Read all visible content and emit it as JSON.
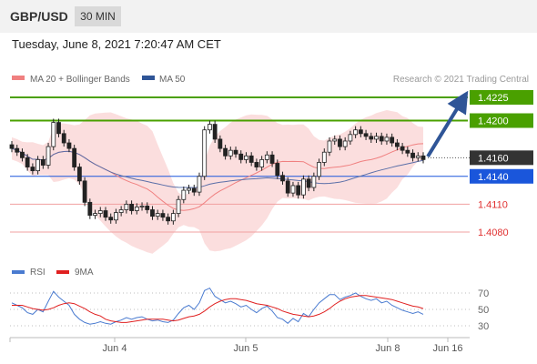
{
  "header": {
    "pair": "GBP/USD",
    "timeframe": "30 MIN"
  },
  "date_label": "Tuesday, June 8, 2021 7:20:47 AM CET",
  "chart_data": [
    {
      "type": "candlestick",
      "title": "GBP/USD 30 MIN",
      "legend": [
        {
          "label": "MA 20 + Bollinger Bands",
          "color": "#f08080"
        },
        {
          "label": "MA 50",
          "color": "#2f5597"
        }
      ],
      "source": "Research © 2021 Trading Central",
      "y_axis": {
        "range": [
          1.406,
          1.4235
        ],
        "tick_labels": [
          "1.4225",
          "1.4200",
          "1.4160",
          "1.4140",
          "1.4110",
          "1.4080"
        ]
      },
      "levels": [
        {
          "value": 1.4225,
          "label": "1.4225",
          "type": "target",
          "color": "#4aa000"
        },
        {
          "value": 1.42,
          "label": "1.4200",
          "type": "resistance",
          "color": "#4aa000"
        },
        {
          "value": 1.416,
          "label": "1.4160",
          "type": "last-price",
          "color": "#333333"
        },
        {
          "value": 1.414,
          "label": "1.4140",
          "type": "pivot",
          "color": "#1a56db"
        },
        {
          "value": 1.411,
          "label": "1.4110",
          "type": "support",
          "color": "#e03030"
        },
        {
          "value": 1.408,
          "label": "1.4080",
          "type": "support",
          "color": "#e03030"
        }
      ],
      "x_axis": {
        "tick_labels": [
          "Jun 4",
          "Jun 5",
          "Jun 8",
          "Jun 16"
        ]
      },
      "price_series": [
        1.417,
        1.4166,
        1.416,
        1.415,
        1.4146,
        1.4158,
        1.4152,
        1.4172,
        1.4198,
        1.4186,
        1.4176,
        1.417,
        1.415,
        1.4135,
        1.4112,
        1.4098,
        1.41,
        1.4103,
        1.4096,
        1.4093,
        1.4101,
        1.4104,
        1.411,
        1.4103,
        1.4107,
        1.4108,
        1.4104,
        1.4097,
        1.41,
        1.4096,
        1.4092,
        1.41,
        1.4115,
        1.4125,
        1.4127,
        1.4123,
        1.414,
        1.419,
        1.4196,
        1.418,
        1.417,
        1.4162,
        1.4168,
        1.4164,
        1.4158,
        1.4162,
        1.4155,
        1.415,
        1.4158,
        1.4163,
        1.4154,
        1.4141,
        1.4135,
        1.4122,
        1.413,
        1.412,
        1.4137,
        1.4128,
        1.414,
        1.4155,
        1.4166,
        1.4178,
        1.418,
        1.4172,
        1.4178,
        1.4185,
        1.419,
        1.4186,
        1.4183,
        1.418,
        1.4183,
        1.4178,
        1.4182,
        1.4176,
        1.4172,
        1.4168,
        1.4165,
        1.416,
        1.4162,
        1.4158
      ],
      "rsi_panel": {
        "legend": [
          {
            "label": "RSI",
            "color": "#4a7bd0"
          },
          {
            "label": "9MA",
            "color": "#e02020"
          }
        ],
        "y_range": [
          20,
          80
        ],
        "tick_labels": [
          "70",
          "50",
          "30"
        ],
        "rsi": [
          58,
          55,
          52,
          46,
          44,
          50,
          47,
          60,
          72,
          65,
          60,
          55,
          44,
          38,
          34,
          32,
          33,
          35,
          33,
          32,
          35,
          37,
          40,
          38,
          40,
          41,
          38,
          36,
          37,
          35,
          34,
          37,
          45,
          52,
          55,
          50,
          58,
          73,
          76,
          66,
          62,
          58,
          60,
          57,
          53,
          55,
          50,
          46,
          51,
          54,
          48,
          40,
          38,
          33,
          39,
          35,
          45,
          41,
          50,
          58,
          63,
          68,
          68,
          62,
          65,
          67,
          70,
          66,
          63,
          61,
          63,
          58,
          60,
          55,
          52,
          49,
          47,
          45,
          47,
          44
        ],
        "ma9": [
          55,
          55,
          55,
          53,
          51,
          50,
          49,
          50,
          52,
          55,
          57,
          58,
          57,
          54,
          51,
          47,
          44,
          42,
          38,
          36,
          35,
          34,
          34,
          35,
          36,
          37,
          38,
          38,
          38,
          38,
          37,
          36,
          37,
          39,
          41,
          42,
          44,
          48,
          53,
          57,
          60,
          62,
          63,
          63,
          62,
          61,
          59,
          57,
          56,
          55,
          53,
          51,
          48,
          46,
          44,
          43,
          42,
          41,
          42,
          44,
          47,
          51,
          56,
          60,
          63,
          65,
          66,
          67,
          67,
          66,
          65,
          64,
          63,
          62,
          60,
          58,
          56,
          54,
          53,
          51
        ]
      }
    }
  ]
}
